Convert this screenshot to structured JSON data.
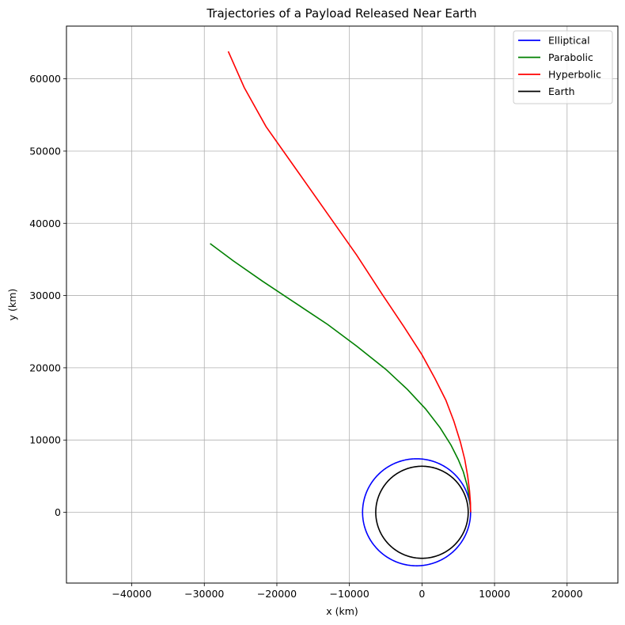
{
  "chart_data": {
    "type": "line",
    "title": "Trajectories of a Payload Released Near Earth",
    "xlabel": "x (km)",
    "ylabel": "y (km)",
    "xlim": [
      -49000,
      27000
    ],
    "ylim": [
      -9800,
      67300
    ],
    "xticks": [
      -40000,
      -30000,
      -20000,
      -10000,
      0,
      10000,
      20000
    ],
    "yticks": [
      0,
      10000,
      20000,
      30000,
      40000,
      50000,
      60000
    ],
    "xtick_labels": [
      "−40000",
      "−30000",
      "−20000",
      "−10000",
      "0",
      "10000",
      "20000"
    ],
    "ytick_labels": [
      "0",
      "10000",
      "20000",
      "30000",
      "40000",
      "50000",
      "60000"
    ],
    "grid": true,
    "legend_position": "top-right",
    "series": [
      {
        "name": "Elliptical",
        "color": "#0000ff",
        "kind": "ellipse",
        "r_periapsis": 6700,
        "eccentricity": 0.1,
        "orbit_full": true
      },
      {
        "name": "Parabolic",
        "color": "#008000",
        "x": [
          6700,
          6650,
          6500,
          6200,
          5700,
          5000,
          4000,
          2500,
          500,
          -2000,
          -5000,
          -9000,
          -13000,
          -17500,
          -22000,
          -26000,
          -29200
        ],
        "y": [
          0,
          1000,
          2200,
          3800,
          5600,
          7300,
          9300,
          11700,
          14300,
          17000,
          19800,
          23000,
          26000,
          29000,
          32000,
          34800,
          37200
        ]
      },
      {
        "name": "Hyperbolic",
        "color": "#ff0000",
        "x": [
          6700,
          6680,
          6550,
          6300,
          5900,
          5300,
          4400,
          3300,
          1800,
          0,
          -2500,
          -5500,
          -9000,
          -13000,
          -17000,
          -21500,
          -24500,
          -26700
        ],
        "y": [
          0,
          1300,
          3000,
          5000,
          7300,
          9700,
          12600,
          15500,
          18500,
          21800,
          25700,
          30200,
          35600,
          41300,
          47000,
          53400,
          58800,
          63800
        ]
      },
      {
        "name": "Earth",
        "color": "#000000",
        "kind": "circle",
        "radius": 6371,
        "center": [
          0,
          0
        ]
      }
    ]
  }
}
